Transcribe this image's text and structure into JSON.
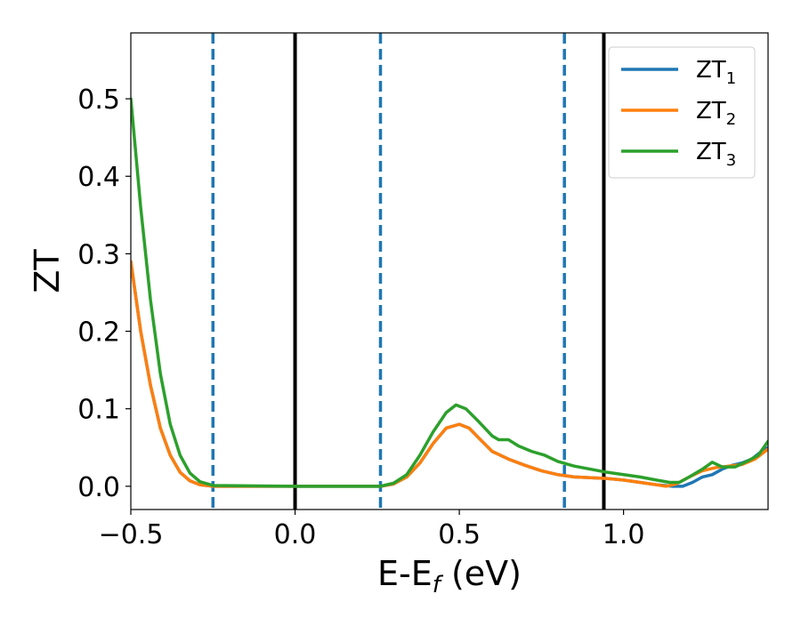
{
  "chart_data": {
    "type": "line",
    "title": "",
    "xlabel": "E-E",
    "xlabel_sub": "f",
    "xlabel_unit": " (eV)",
    "ylabel": "ZT",
    "xlim": [
      -0.5,
      1.44
    ],
    "ylim": [
      -0.03,
      0.585
    ],
    "grid": false,
    "legend_position": "top-right",
    "x_ticks": [
      {
        "value": -0.5,
        "label": "−0.5"
      },
      {
        "value": 0.0,
        "label": "0.0"
      },
      {
        "value": 0.5,
        "label": "0.5"
      },
      {
        "value": 1.0,
        "label": "1.0"
      }
    ],
    "y_ticks": [
      {
        "value": 0.0,
        "label": "0.0"
      },
      {
        "value": 0.1,
        "label": "0.1"
      },
      {
        "value": 0.2,
        "label": "0.2"
      },
      {
        "value": 0.3,
        "label": "0.3"
      },
      {
        "value": 0.4,
        "label": "0.4"
      },
      {
        "value": 0.5,
        "label": "0.5"
      }
    ],
    "vertical_lines": [
      {
        "x": -0.25,
        "style": "dashed",
        "color": "#1f77b4"
      },
      {
        "x": 0.0,
        "style": "solid",
        "color": "#000000"
      },
      {
        "x": 0.26,
        "style": "dashed",
        "color": "#1f77b4"
      },
      {
        "x": 0.82,
        "style": "dashed",
        "color": "#1f77b4"
      },
      {
        "x": 0.94,
        "style": "solid",
        "color": "#000000"
      }
    ],
    "series": [
      {
        "name": "ZT",
        "name_sub": "1",
        "color": "#1f77b4",
        "points": [
          [
            -0.5,
            0.29
          ],
          [
            -0.47,
            0.2
          ],
          [
            -0.44,
            0.13
          ],
          [
            -0.41,
            0.075
          ],
          [
            -0.38,
            0.04
          ],
          [
            -0.35,
            0.018
          ],
          [
            -0.32,
            0.007
          ],
          [
            -0.29,
            0.002
          ],
          [
            -0.25,
            0.0
          ],
          [
            0.0,
            0.0
          ],
          [
            0.26,
            0.0
          ],
          [
            0.3,
            0.003
          ],
          [
            0.34,
            0.012
          ],
          [
            0.38,
            0.03
          ],
          [
            0.42,
            0.055
          ],
          [
            0.46,
            0.075
          ],
          [
            0.5,
            0.08
          ],
          [
            0.53,
            0.075
          ],
          [
            0.56,
            0.062
          ],
          [
            0.6,
            0.045
          ],
          [
            0.65,
            0.035
          ],
          [
            0.7,
            0.027
          ],
          [
            0.75,
            0.02
          ],
          [
            0.8,
            0.015
          ],
          [
            0.85,
            0.012
          ],
          [
            0.9,
            0.011
          ],
          [
            0.95,
            0.01
          ],
          [
            1.0,
            0.008
          ],
          [
            1.05,
            0.005
          ],
          [
            1.1,
            0.002
          ],
          [
            1.15,
            0.0
          ],
          [
            1.18,
            0.0
          ],
          [
            1.21,
            0.005
          ],
          [
            1.24,
            0.012
          ],
          [
            1.27,
            0.015
          ],
          [
            1.3,
            0.022
          ],
          [
            1.33,
            0.027
          ],
          [
            1.36,
            0.03
          ],
          [
            1.39,
            0.035
          ],
          [
            1.42,
            0.045
          ],
          [
            1.44,
            0.05
          ]
        ]
      },
      {
        "name": "ZT",
        "name_sub": "2",
        "color": "#ff7f0e",
        "points": [
          [
            -0.5,
            0.29
          ],
          [
            -0.47,
            0.2
          ],
          [
            -0.44,
            0.13
          ],
          [
            -0.41,
            0.075
          ],
          [
            -0.38,
            0.04
          ],
          [
            -0.35,
            0.018
          ],
          [
            -0.32,
            0.007
          ],
          [
            -0.29,
            0.002
          ],
          [
            -0.25,
            0.0
          ],
          [
            0.0,
            0.0
          ],
          [
            0.26,
            0.0
          ],
          [
            0.3,
            0.003
          ],
          [
            0.34,
            0.012
          ],
          [
            0.38,
            0.03
          ],
          [
            0.42,
            0.055
          ],
          [
            0.46,
            0.075
          ],
          [
            0.5,
            0.08
          ],
          [
            0.53,
            0.075
          ],
          [
            0.56,
            0.062
          ],
          [
            0.6,
            0.045
          ],
          [
            0.65,
            0.035
          ],
          [
            0.7,
            0.027
          ],
          [
            0.75,
            0.02
          ],
          [
            0.8,
            0.015
          ],
          [
            0.85,
            0.012
          ],
          [
            0.9,
            0.011
          ],
          [
            0.95,
            0.01
          ],
          [
            1.0,
            0.008
          ],
          [
            1.05,
            0.005
          ],
          [
            1.1,
            0.002
          ],
          [
            1.13,
            0.0
          ],
          [
            1.16,
            0.003
          ],
          [
            1.2,
            0.012
          ],
          [
            1.24,
            0.02
          ],
          [
            1.28,
            0.024
          ],
          [
            1.32,
            0.026
          ],
          [
            1.36,
            0.028
          ],
          [
            1.4,
            0.035
          ],
          [
            1.44,
            0.048
          ]
        ]
      },
      {
        "name": "ZT",
        "name_sub": "3",
        "color": "#2ca02c",
        "points": [
          [
            -0.5,
            0.5
          ],
          [
            -0.47,
            0.36
          ],
          [
            -0.44,
            0.24
          ],
          [
            -0.41,
            0.145
          ],
          [
            -0.38,
            0.08
          ],
          [
            -0.35,
            0.04
          ],
          [
            -0.32,
            0.017
          ],
          [
            -0.29,
            0.006
          ],
          [
            -0.25,
            0.001
          ],
          [
            0.0,
            0.0
          ],
          [
            0.26,
            0.0
          ],
          [
            0.3,
            0.004
          ],
          [
            0.34,
            0.015
          ],
          [
            0.38,
            0.04
          ],
          [
            0.42,
            0.07
          ],
          [
            0.46,
            0.095
          ],
          [
            0.49,
            0.105
          ],
          [
            0.52,
            0.1
          ],
          [
            0.56,
            0.083
          ],
          [
            0.6,
            0.065
          ],
          [
            0.62,
            0.06
          ],
          [
            0.65,
            0.06
          ],
          [
            0.68,
            0.052
          ],
          [
            0.72,
            0.045
          ],
          [
            0.76,
            0.04
          ],
          [
            0.8,
            0.032
          ],
          [
            0.85,
            0.026
          ],
          [
            0.9,
            0.022
          ],
          [
            0.95,
            0.018
          ],
          [
            1.0,
            0.015
          ],
          [
            1.05,
            0.012
          ],
          [
            1.1,
            0.008
          ],
          [
            1.14,
            0.005
          ],
          [
            1.17,
            0.005
          ],
          [
            1.2,
            0.012
          ],
          [
            1.24,
            0.022
          ],
          [
            1.27,
            0.031
          ],
          [
            1.3,
            0.025
          ],
          [
            1.34,
            0.025
          ],
          [
            1.38,
            0.033
          ],
          [
            1.41,
            0.04
          ],
          [
            1.44,
            0.058
          ]
        ]
      }
    ]
  }
}
